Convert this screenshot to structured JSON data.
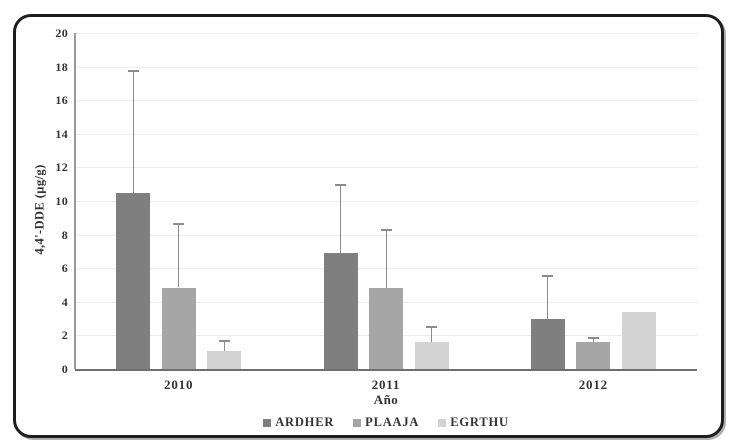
{
  "chart_data": {
    "type": "bar",
    "title": "",
    "categories": [
      "2010",
      "2011",
      "2012"
    ],
    "series": [
      {
        "name": "ARDHER",
        "color": "#7f7f7f",
        "values": [
          10.5,
          6.9,
          3.0
        ],
        "error_top": [
          17.8,
          11.0,
          5.6
        ]
      },
      {
        "name": "PLAAJA",
        "color": "#a6a6a6",
        "values": [
          4.85,
          4.8,
          1.6
        ],
        "error_top": [
          8.7,
          8.35,
          1.9
        ]
      },
      {
        "name": "EGRTHU",
        "color": "#d3d3d3",
        "values": [
          1.05,
          1.6,
          3.4
        ],
        "error_top": [
          1.75,
          2.55,
          null
        ]
      }
    ],
    "xlabel": "Año",
    "ylabel": "4,4'-DDE (µg/g)",
    "ylim": [
      0,
      20
    ],
    "yticks": [
      0,
      2,
      4,
      6,
      8,
      10,
      12,
      14,
      16,
      18,
      20
    ],
    "grid": true,
    "legend_position": "bottom",
    "colors": {
      "grid_color": "#ececec",
      "y_axis_color": "#9a9a9a",
      "baseline_color": "#6f6f6f",
      "error_bar_color": "#8c8c8c",
      "text_color": "#333333",
      "frame_color": "#1d1d1d"
    }
  }
}
